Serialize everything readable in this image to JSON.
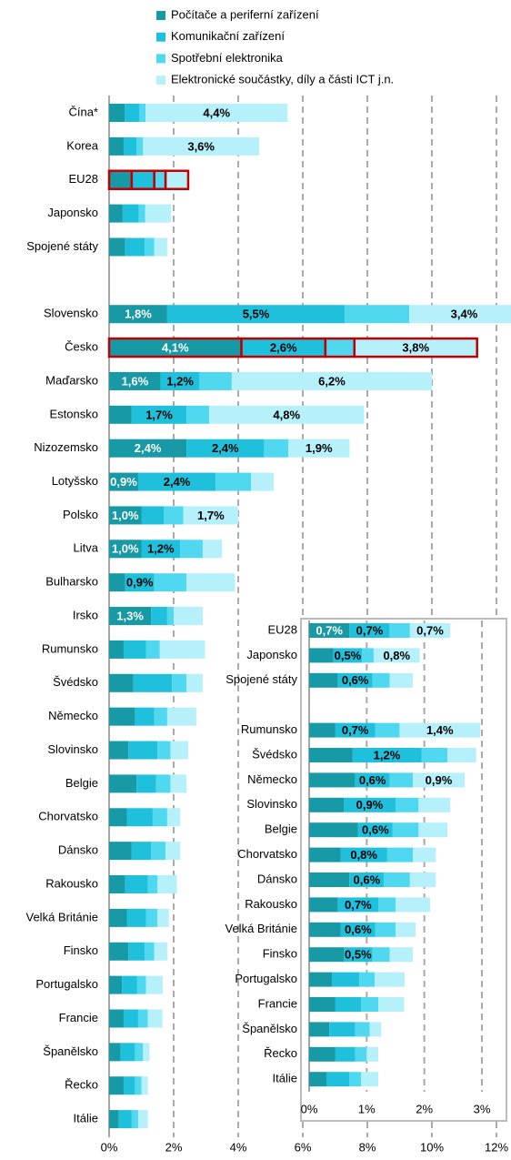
{
  "chart_data": [
    {
      "type": "bar",
      "orientation": "horizontal",
      "stacked": true,
      "grid": true,
      "categories": [
        "Čína*",
        "Korea",
        "EU28",
        "Japonsko",
        "Spojené státy",
        null,
        "Slovensko",
        "Česko",
        "Maďarsko",
        "Estonsko",
        "Nizozemsko",
        "Lotyšsko",
        "Polsko",
        "Litva",
        "Bulharsko",
        "Irsko",
        "Rumunsko",
        "Švédsko",
        "Německo",
        "Slovinsko",
        "Belgie",
        "Chorvatsko",
        "Dánsko",
        "Rakousko",
        "Velká Británie",
        "Finsko",
        "Portugalsko",
        "Francie",
        "Španělsko",
        "Řecko",
        "Itálie"
      ],
      "highlight": [
        2,
        7
      ],
      "series": [
        {
          "name": "Počítače a periferní zařízení",
          "color": "#1799a6",
          "values": [
            0.48,
            0.45,
            0.7,
            0.42,
            0.5,
            null,
            1.8,
            4.1,
            1.6,
            0.7,
            2.4,
            0.9,
            1.0,
            1.0,
            0.5,
            1.3,
            0.45,
            0.75,
            0.8,
            0.6,
            0.85,
            0.55,
            0.7,
            0.5,
            0.55,
            0.6,
            0.4,
            0.45,
            0.35,
            0.45,
            0.3
          ],
          "value_labels": [
            null,
            null,
            null,
            null,
            null,
            null,
            "1,8%",
            "4,1%",
            "1,6%",
            null,
            "2,4%",
            "0,9%",
            "1,0%",
            "1,0%",
            null,
            "1,3%",
            null,
            null,
            null,
            null,
            null,
            null,
            null,
            null,
            null,
            null,
            null,
            null,
            null,
            null,
            null
          ]
        },
        {
          "name": "Komunikační zařízení",
          "color": "#1ec0dc",
          "values": [
            0.45,
            0.4,
            0.7,
            0.5,
            0.6,
            null,
            5.5,
            2.6,
            1.2,
            1.7,
            2.4,
            2.4,
            0.7,
            1.2,
            0.9,
            0.5,
            0.7,
            1.2,
            0.6,
            0.9,
            0.6,
            0.8,
            0.6,
            0.7,
            0.6,
            0.5,
            0.47,
            0.45,
            0.45,
            0.35,
            0.4
          ],
          "value_labels": [
            null,
            null,
            null,
            null,
            null,
            null,
            "5,5%",
            "2,6%",
            "1,2%",
            "1,7%",
            "2,4%",
            "2,4%",
            null,
            "1,2%",
            "0,9%",
            null,
            null,
            null,
            null,
            null,
            null,
            null,
            null,
            null,
            null,
            null,
            null,
            null,
            null,
            null,
            null
          ]
        },
        {
          "name": "Spotřební elektronika",
          "color": "#4fd8f0",
          "values": [
            0.2,
            0.2,
            0.35,
            0.2,
            0.3,
            null,
            2.0,
            0.9,
            1.0,
            0.7,
            0.75,
            1.1,
            0.6,
            0.7,
            1.0,
            0.2,
            0.42,
            0.45,
            0.4,
            0.4,
            0.45,
            0.45,
            0.45,
            0.3,
            0.35,
            0.3,
            0.27,
            0.3,
            0.25,
            0.2,
            0.2
          ]
        },
        {
          "name": "Elektronické součástky, díly a části ICT j.n.",
          "color": "#b5f0fb",
          "values": [
            4.4,
            3.6,
            0.7,
            0.8,
            0.4,
            null,
            3.4,
            3.8,
            6.2,
            4.8,
            1.9,
            0.7,
            1.7,
            0.6,
            1.5,
            0.9,
            1.4,
            0.5,
            0.9,
            0.55,
            0.5,
            0.4,
            0.45,
            0.6,
            0.35,
            0.4,
            0.52,
            0.45,
            0.2,
            0.2,
            0.3
          ],
          "value_labels": [
            "4,4%",
            "3,6%",
            null,
            null,
            null,
            null,
            "3,4%",
            "3,8%",
            "6,2%",
            "4,8%",
            "1,9%",
            null,
            "1,7%",
            null,
            null,
            null,
            null,
            null,
            null,
            null,
            null,
            null,
            null,
            null,
            null,
            null,
            null,
            null,
            null,
            null,
            null
          ]
        }
      ],
      "xlim": [
        0,
        12
      ],
      "xticks": [
        {
          "value": 0,
          "label": "0%"
        },
        {
          "value": 2,
          "label": "2%"
        },
        {
          "value": 4,
          "label": "4%"
        },
        {
          "value": 6,
          "label": "6%"
        },
        {
          "value": 8,
          "label": "8%"
        },
        {
          "value": 10,
          "label": "10%"
        },
        {
          "value": 12,
          "label": "12%"
        }
      ]
    },
    {
      "type": "bar",
      "orientation": "horizontal",
      "stacked": true,
      "grid": true,
      "categories": [
        "EU28",
        "Japonsko",
        "Spojené státy",
        null,
        "Rumunsko",
        "Švédsko",
        "Německo",
        "Slovinsko",
        "Belgie",
        "Chorvatsko",
        "Dánsko",
        "Rakousko",
        "Velká Británie",
        "Finsko",
        "Portugalsko",
        "Francie",
        "Španělsko",
        "Řecko",
        "Itálie"
      ],
      "series": [
        {
          "color": "#1799a6",
          "values": [
            0.7,
            0.42,
            0.5,
            null,
            0.45,
            0.75,
            0.8,
            0.6,
            0.85,
            0.55,
            0.7,
            0.5,
            0.55,
            0.6,
            0.4,
            0.45,
            0.35,
            0.45,
            0.3
          ],
          "value_labels": [
            "0,7%",
            null,
            null,
            null,
            null,
            null,
            null,
            null,
            null,
            null,
            null,
            null,
            null,
            null,
            null,
            null,
            null,
            null,
            null
          ]
        },
        {
          "color": "#1ec0dc",
          "values": [
            0.7,
            0.5,
            0.6,
            null,
            0.7,
            1.2,
            0.6,
            0.9,
            0.6,
            0.8,
            0.6,
            0.7,
            0.6,
            0.5,
            0.47,
            0.45,
            0.45,
            0.35,
            0.4
          ],
          "value_labels": [
            "0,7%",
            "0,5%",
            "0,6%",
            null,
            "0,7%",
            "1,2%",
            "0,6%",
            "0,9%",
            "0,6%",
            "0,8%",
            "0,6%",
            "0,7%",
            "0,6%",
            "0,5%",
            null,
            null,
            null,
            null,
            null
          ]
        },
        {
          "color": "#4fd8f0",
          "values": [
            0.35,
            0.2,
            0.3,
            null,
            0.42,
            0.45,
            0.4,
            0.4,
            0.45,
            0.45,
            0.45,
            0.3,
            0.35,
            0.3,
            0.27,
            0.3,
            0.25,
            0.2,
            0.2
          ]
        },
        {
          "color": "#b5f0fb",
          "values": [
            0.7,
            0.8,
            0.4,
            null,
            1.4,
            0.5,
            0.9,
            0.55,
            0.5,
            0.4,
            0.45,
            0.6,
            0.35,
            0.4,
            0.52,
            0.45,
            0.2,
            0.2,
            0.3
          ],
          "value_labels": [
            "0,7%",
            "0,8%",
            null,
            null,
            "1,4%",
            null,
            "0,9%",
            null,
            null,
            null,
            null,
            null,
            null,
            null,
            null,
            null,
            null,
            null,
            null
          ]
        }
      ],
      "xlim": [
        0,
        3
      ],
      "xticks": [
        {
          "value": 0,
          "label": "0%"
        },
        {
          "value": 1,
          "label": "1%"
        },
        {
          "value": 2,
          "label": "2%"
        },
        {
          "value": 3,
          "label": "3%"
        }
      ]
    }
  ]
}
